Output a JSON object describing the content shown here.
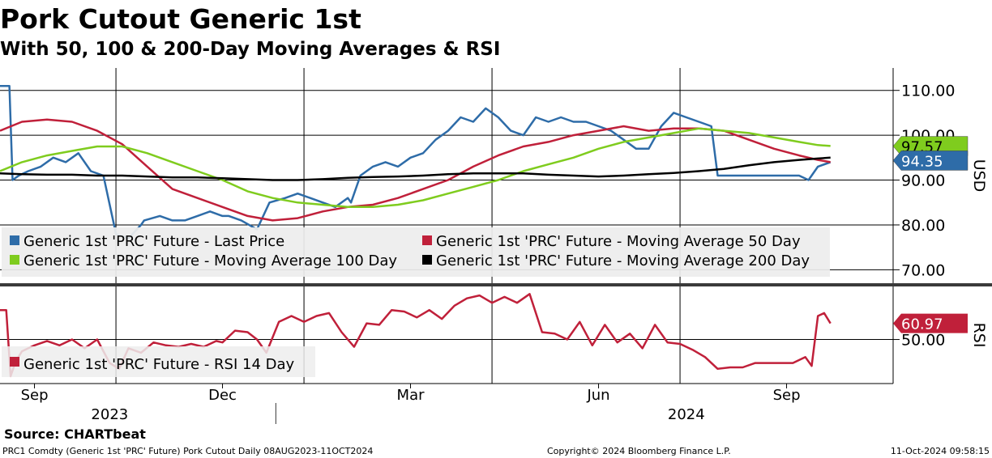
{
  "title": "Pork Cutout Generic 1st",
  "subtitle": "With 50, 100 & 200-Day Moving Averages & RSI",
  "source": "Source: CHARTbeat",
  "footer": {
    "left": "PRC1 Comdty (Generic 1st 'PRC' Future) Pork Cutout  Daily 08AUG2023-11OCT2024",
    "center": "Copyright© 2024 Bloomberg Finance L.P.",
    "right": "11-Oct-2024 09:58:15"
  },
  "colors": {
    "price": "#2e6ca8",
    "ma50": "#c0203a",
    "ma100": "#7fcc1e",
    "ma200": "#000000",
    "rsi": "#c0203a"
  },
  "chart_data": [
    {
      "type": "line",
      "ylabel": "USD",
      "ylim": [
        67,
        115
      ],
      "yticks": [
        "110.00",
        "100.00",
        "90.00",
        "80.00",
        "70.00"
      ],
      "ytick_values": [
        110,
        100,
        90,
        80,
        70
      ],
      "x_tick_labels": [
        "Sep",
        "Dec",
        "Mar",
        "Jun",
        "Sep"
      ],
      "x_tick_months": [
        1,
        4,
        7,
        10,
        13
      ],
      "year_labels": [
        "2023",
        "2024"
      ],
      "year_label_months": [
        2.2,
        11.4
      ],
      "xlim_months": [
        0.45,
        14.7
      ],
      "legend_position": "bottom",
      "grid": true,
      "last_value_tags": [
        {
          "value": "97.57",
          "y": 97.57,
          "color": "#7fcc1e",
          "text_color": "#000000"
        },
        {
          "value": "94.35",
          "y": 94.35,
          "color": "#2e6ca8",
          "text_color": "#ffffff"
        }
      ],
      "series": [
        {
          "name": "Generic 1st 'PRC' Future - Last Price",
          "color": "#2e6ca8",
          "x": [
            0.45,
            0.6,
            0.65,
            0.75,
            0.9,
            1.1,
            1.3,
            1.5,
            1.7,
            1.9,
            2.1,
            2.3,
            2.5,
            2.7,
            2.75,
            3.0,
            3.2,
            3.4,
            3.6,
            3.8,
            4.0,
            4.1,
            4.3,
            4.55,
            4.75,
            5.0,
            5.2,
            5.4,
            5.6,
            5.8,
            6.0,
            6.05,
            6.2,
            6.4,
            6.6,
            6.8,
            7.0,
            7.2,
            7.4,
            7.6,
            7.8,
            8.0,
            8.2,
            8.4,
            8.6,
            8.8,
            9.0,
            9.2,
            9.4,
            9.6,
            9.8,
            10.0,
            10.2,
            10.4,
            10.6,
            10.8,
            11.0,
            11.2,
            11.4,
            11.6,
            11.8,
            11.9,
            12.2,
            12.5,
            12.8,
            13.0,
            13.2,
            13.35,
            13.5,
            13.7
          ],
          "y": [
            111,
            111,
            90,
            91,
            92,
            93,
            95,
            94,
            96,
            92,
            91,
            78,
            77,
            80,
            81,
            82,
            81,
            81,
            82,
            83,
            82,
            82,
            81,
            79,
            85,
            86,
            87,
            86,
            85,
            84,
            86,
            85,
            91,
            93,
            94,
            93,
            95,
            96,
            99,
            101,
            104,
            103,
            106,
            104,
            101,
            100,
            104,
            103,
            104,
            103,
            103,
            102,
            101,
            99,
            97,
            97,
            102,
            105,
            104,
            103,
            102,
            91,
            91,
            91,
            91,
            91,
            91,
            90,
            93,
            94
          ],
          "dashed_segment": {
            "from": 2.3,
            "to": 3.6,
            "color": "#8aafd8"
          }
        },
        {
          "name": "Generic 1st 'PRC' Future - Moving Average 50 Day",
          "color": "#c0203a",
          "x": [
            0.45,
            0.8,
            1.2,
            1.6,
            2.0,
            2.4,
            2.8,
            3.2,
            3.6,
            4.0,
            4.4,
            4.8,
            5.2,
            5.6,
            6.0,
            6.4,
            6.8,
            7.2,
            7.6,
            8.0,
            8.4,
            8.8,
            9.2,
            9.6,
            10.0,
            10.4,
            10.8,
            11.2,
            11.6,
            12.0,
            12.4,
            12.8,
            13.2,
            13.5,
            13.7
          ],
          "y": [
            101,
            103,
            103.5,
            103,
            101,
            98,
            93,
            88,
            86,
            84,
            82,
            81,
            81.5,
            83,
            84,
            84.5,
            86,
            88,
            90,
            93,
            95.5,
            97.5,
            98.5,
            100,
            101,
            102,
            101,
            101.5,
            101.5,
            101,
            99,
            97,
            95.5,
            94.5,
            94
          ],
          "dashed_segment": {
            "from": 1.9,
            "to": 3.3,
            "color": "#d98a97"
          }
        },
        {
          "name": "Generic 1st 'PRC' Future - Moving Average 100 Day",
          "color": "#7fcc1e",
          "x": [
            0.45,
            0.8,
            1.2,
            1.6,
            2.0,
            2.4,
            2.8,
            3.2,
            3.6,
            4.0,
            4.4,
            4.8,
            5.2,
            5.6,
            6.0,
            6.4,
            6.8,
            7.2,
            7.6,
            8.0,
            8.4,
            8.8,
            9.2,
            9.6,
            10.0,
            10.4,
            10.8,
            11.2,
            11.6,
            12.0,
            12.4,
            12.8,
            13.2,
            13.5,
            13.7
          ],
          "y": [
            92,
            94,
            95.5,
            96.5,
            97.5,
            97.5,
            96,
            94,
            92,
            90,
            87.5,
            86,
            85,
            84.5,
            84,
            84,
            84.5,
            85.5,
            87,
            88.5,
            90,
            92,
            93.5,
            95,
            97,
            98.5,
            99.5,
            100.5,
            101.5,
            101,
            100.5,
            99.5,
            98.5,
            97.8,
            97.6
          ]
        },
        {
          "name": "Generic 1st 'PRC' Future - Moving Average 200 Day",
          "color": "#000000",
          "x": [
            0.45,
            0.8,
            1.2,
            1.6,
            2.0,
            2.4,
            2.8,
            3.2,
            3.6,
            4.0,
            4.4,
            4.8,
            5.2,
            5.6,
            6.0,
            6.4,
            6.8,
            7.2,
            7.6,
            8.0,
            8.4,
            8.8,
            9.2,
            9.6,
            10.0,
            10.4,
            10.8,
            11.2,
            11.6,
            12.0,
            12.4,
            12.8,
            13.2,
            13.5,
            13.7
          ],
          "y": [
            91.5,
            91.3,
            91.2,
            91.2,
            91,
            91,
            90.8,
            90.6,
            90.6,
            90.4,
            90.2,
            90,
            90,
            90.2,
            90.5,
            90.7,
            90.8,
            91,
            91.3,
            91.5,
            91.5,
            91.5,
            91.2,
            91,
            90.8,
            91,
            91.3,
            91.6,
            92,
            92.5,
            93.3,
            94,
            94.5,
            94.8,
            95
          ]
        }
      ]
    },
    {
      "type": "line",
      "ylabel": "RSI",
      "ylim": [
        20,
        85
      ],
      "yticks": [
        "50.00"
      ],
      "ytick_values": [
        50
      ],
      "legend_position": "bottom-left",
      "last_value_tags": [
        {
          "value": "60.97",
          "y": 60.97,
          "color": "#c0203a",
          "text_color": "#ffffff"
        }
      ],
      "series": [
        {
          "name": "Generic 1st 'PRC' Future - RSI 14 Day",
          "color": "#c0203a",
          "x": [
            0.45,
            0.55,
            0.62,
            0.7,
            0.8,
            1.0,
            1.2,
            1.4,
            1.6,
            1.8,
            2.0,
            2.2,
            2.35,
            2.5,
            2.7,
            2.9,
            3.1,
            3.3,
            3.5,
            3.7,
            3.9,
            4.0,
            4.2,
            4.4,
            4.55,
            4.7,
            4.9,
            5.1,
            5.3,
            5.5,
            5.7,
            5.9,
            6.1,
            6.3,
            6.5,
            6.7,
            6.9,
            7.1,
            7.3,
            7.5,
            7.7,
            7.9,
            8.1,
            8.3,
            8.5,
            8.7,
            8.9,
            9.1,
            9.3,
            9.5,
            9.7,
            9.9,
            10.1,
            10.3,
            10.5,
            10.7,
            10.9,
            11.1,
            11.3,
            11.5,
            11.7,
            11.9,
            12.1,
            12.3,
            12.5,
            12.7,
            12.9,
            13.1,
            13.3,
            13.4,
            13.5,
            13.6,
            13.7
          ],
          "y": [
            70,
            70,
            25,
            35,
            42,
            46,
            49,
            46,
            50,
            44,
            50,
            34,
            30,
            44,
            41,
            48,
            46,
            45,
            47,
            45,
            49,
            48,
            56,
            55,
            50,
            41,
            62,
            66,
            62,
            66,
            68,
            55,
            45,
            61,
            60,
            70,
            69,
            65,
            70,
            64,
            73,
            78,
            80,
            75,
            79,
            75,
            81,
            55,
            54,
            50,
            62,
            46,
            60,
            48,
            54,
            44,
            60,
            48,
            47,
            43,
            38,
            30,
            31,
            31,
            34,
            34,
            34,
            34,
            38,
            32,
            66,
            68,
            60.97
          ],
          "dashed_segment": {
            "from": 0.62,
            "to": 4.55,
            "color": "#d98a97"
          }
        }
      ]
    }
  ],
  "legend": {
    "main": [
      {
        "label": "Generic 1st 'PRC' Future - Last Price",
        "color": "#2e6ca8"
      },
      {
        "label": "Generic 1st 'PRC' Future - Moving Average 50 Day",
        "color": "#c0203a"
      },
      {
        "label": "Generic 1st 'PRC' Future - Moving Average 100 Day",
        "color": "#7fcc1e"
      },
      {
        "label": "Generic 1st 'PRC' Future - Moving Average 200 Day",
        "color": "#000000"
      }
    ],
    "rsi": [
      {
        "label": "Generic 1st 'PRC' Future - RSI 14 Day",
        "color": "#c0203a"
      }
    ]
  }
}
